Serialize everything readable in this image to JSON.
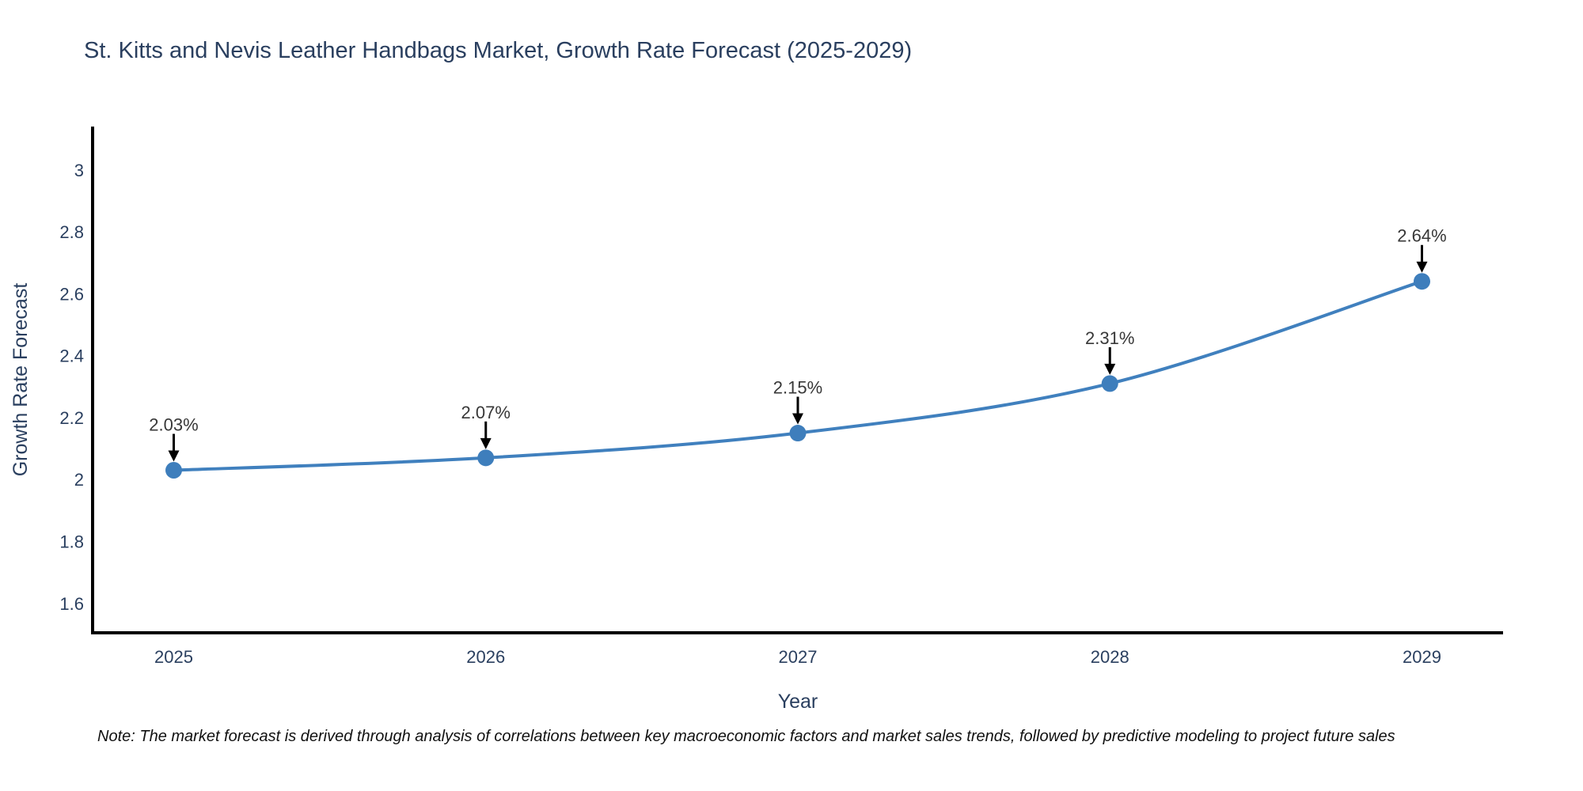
{
  "chart_data": {
    "type": "line",
    "title": "St. Kitts and Nevis Leather Handbags Market, Growth Rate Forecast (2025-2029)",
    "xlabel": "Year",
    "ylabel": "Growth Rate Forecast",
    "x": [
      2025,
      2026,
      2027,
      2028,
      2029
    ],
    "y": [
      2.03,
      2.07,
      2.15,
      2.31,
      2.64
    ],
    "point_labels": [
      "2.03%",
      "2.07%",
      "2.15%",
      "2.31%",
      "2.64%"
    ],
    "xtick_labels": [
      "2025",
      "2026",
      "2027",
      "2028",
      "2029"
    ],
    "xtick_values": [
      2025,
      2026,
      2027,
      2028,
      2029
    ],
    "ytick_labels": [
      "1.6",
      "1.8",
      "2",
      "2.2",
      "2.4",
      "2.6",
      "2.8",
      "3"
    ],
    "ytick_values": [
      1.6,
      1.8,
      2,
      2.2,
      2.4,
      2.6,
      2.8,
      3
    ],
    "xlim": [
      2024.74,
      2029.26
    ],
    "ylim": [
      1.505,
      3.14
    ],
    "grid": false,
    "legend": false,
    "line_shape": "spline",
    "colors": {
      "line": "#4080be",
      "marker": "#3e7ebc",
      "axis": "#000000",
      "tick_text": "#2a3f5f",
      "axis_title_text": "#2a3f5f",
      "annotation_text": "#383838",
      "annotation_arrow": "#000000"
    }
  },
  "footnote": {
    "text": "Note: The market forecast is derived through analysis of correlations between key macroeconomic factors and market sales trends, followed by predictive modeling to project future sales"
  }
}
